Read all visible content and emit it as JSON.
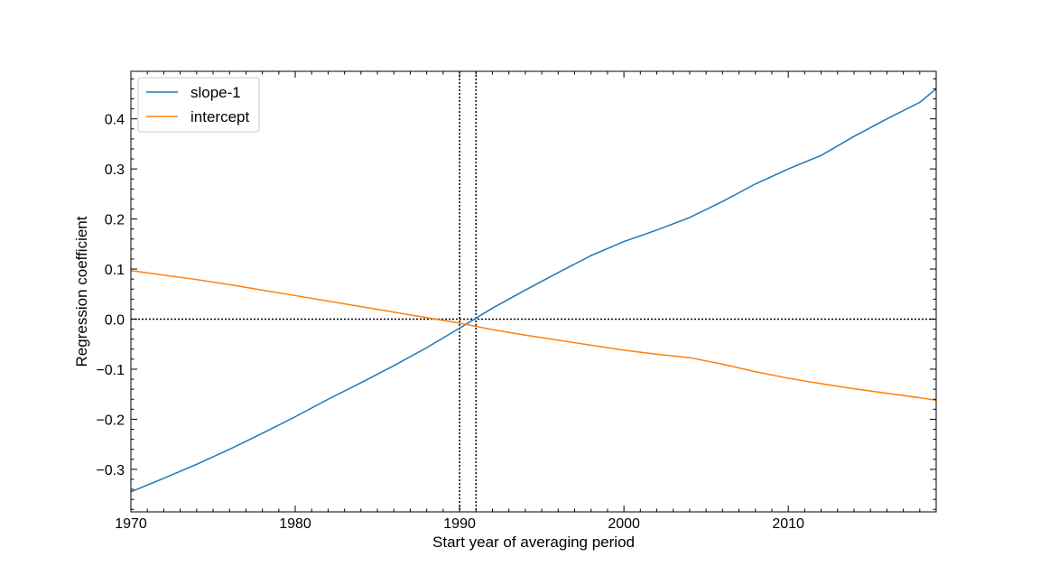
{
  "chart_data": {
    "type": "line",
    "title": "",
    "xlabel": "Start year of averaging period",
    "ylabel": "Regression coefficient",
    "xlim": [
      1970,
      2019
    ],
    "ylim": [
      -0.385,
      0.495
    ],
    "xticks": [
      1970,
      1980,
      1990,
      2000,
      2010
    ],
    "yticks": [
      -0.3,
      -0.2,
      -0.1,
      0.0,
      0.1,
      0.2,
      0.3,
      0.4
    ],
    "ytick_labels": [
      "−0.3",
      "−0.2",
      "−0.1",
      "0.0",
      "0.1",
      "0.2",
      "0.3",
      "0.4"
    ],
    "grid": false,
    "legend_position": "upper-left",
    "hlines": [
      {
        "y": 0.0,
        "style": "dotted",
        "color": "#000000"
      }
    ],
    "vlines": [
      {
        "x": 1990,
        "style": "dotted",
        "color": "#000000"
      },
      {
        "x": 1991,
        "style": "dotted",
        "color": "#000000"
      }
    ],
    "x": [
      1970,
      1972,
      1974,
      1976,
      1978,
      1980,
      1982,
      1984,
      1986,
      1988,
      1990,
      1992,
      1994,
      1996,
      1998,
      2000,
      2002,
      2004,
      2006,
      2008,
      2010,
      2012,
      2014,
      2016,
      2018,
      2019
    ],
    "series": [
      {
        "name": "slope-1",
        "color": "#1f77b4",
        "values": [
          -0.345,
          -0.318,
          -0.29,
          -0.26,
          -0.228,
          -0.195,
          -0.16,
          -0.127,
          -0.093,
          -0.057,
          -0.018,
          0.022,
          0.058,
          0.093,
          0.127,
          0.155,
          0.178,
          0.203,
          0.235,
          0.27,
          0.3,
          0.327,
          0.365,
          0.4,
          0.433,
          0.46
        ]
      },
      {
        "name": "intercept",
        "color": "#ff7f0e",
        "values": [
          0.097,
          0.088,
          0.079,
          0.069,
          0.058,
          0.047,
          0.036,
          0.025,
          0.014,
          0.003,
          -0.008,
          -0.021,
          -0.032,
          -0.042,
          -0.052,
          -0.062,
          -0.07,
          -0.077,
          -0.09,
          -0.105,
          -0.118,
          -0.129,
          -0.139,
          -0.148,
          -0.157,
          -0.162
        ]
      }
    ]
  }
}
